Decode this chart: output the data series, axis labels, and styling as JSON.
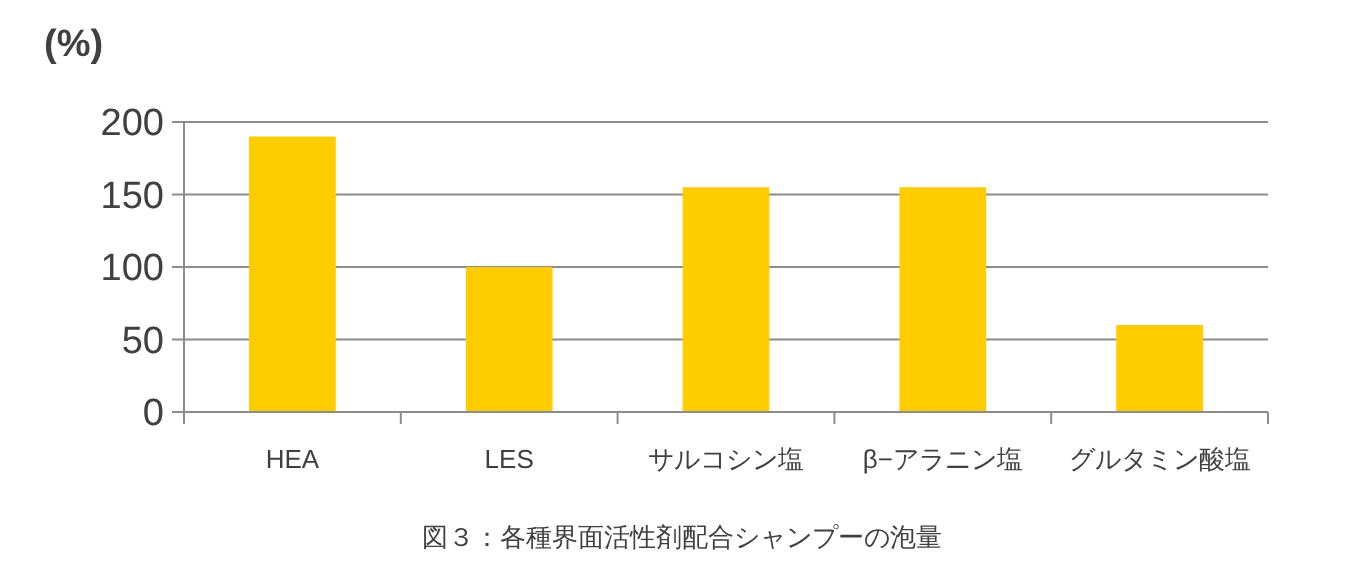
{
  "chart_data": {
    "type": "bar",
    "ylabel": "(%)",
    "categories": [
      "HEA",
      "LES",
      "サルコシン塩",
      "β−アラニン塩",
      "グルタミン酸塩"
    ],
    "values": [
      190,
      100,
      155,
      155,
      60
    ],
    "color": "#ffcc00",
    "ylim": [
      0,
      200
    ],
    "yticks": [
      0,
      50,
      100,
      150,
      200
    ],
    "grid": "y",
    "annotations": [
      "図３：各種界面活性剤配合シャンプーの泡量"
    ]
  }
}
